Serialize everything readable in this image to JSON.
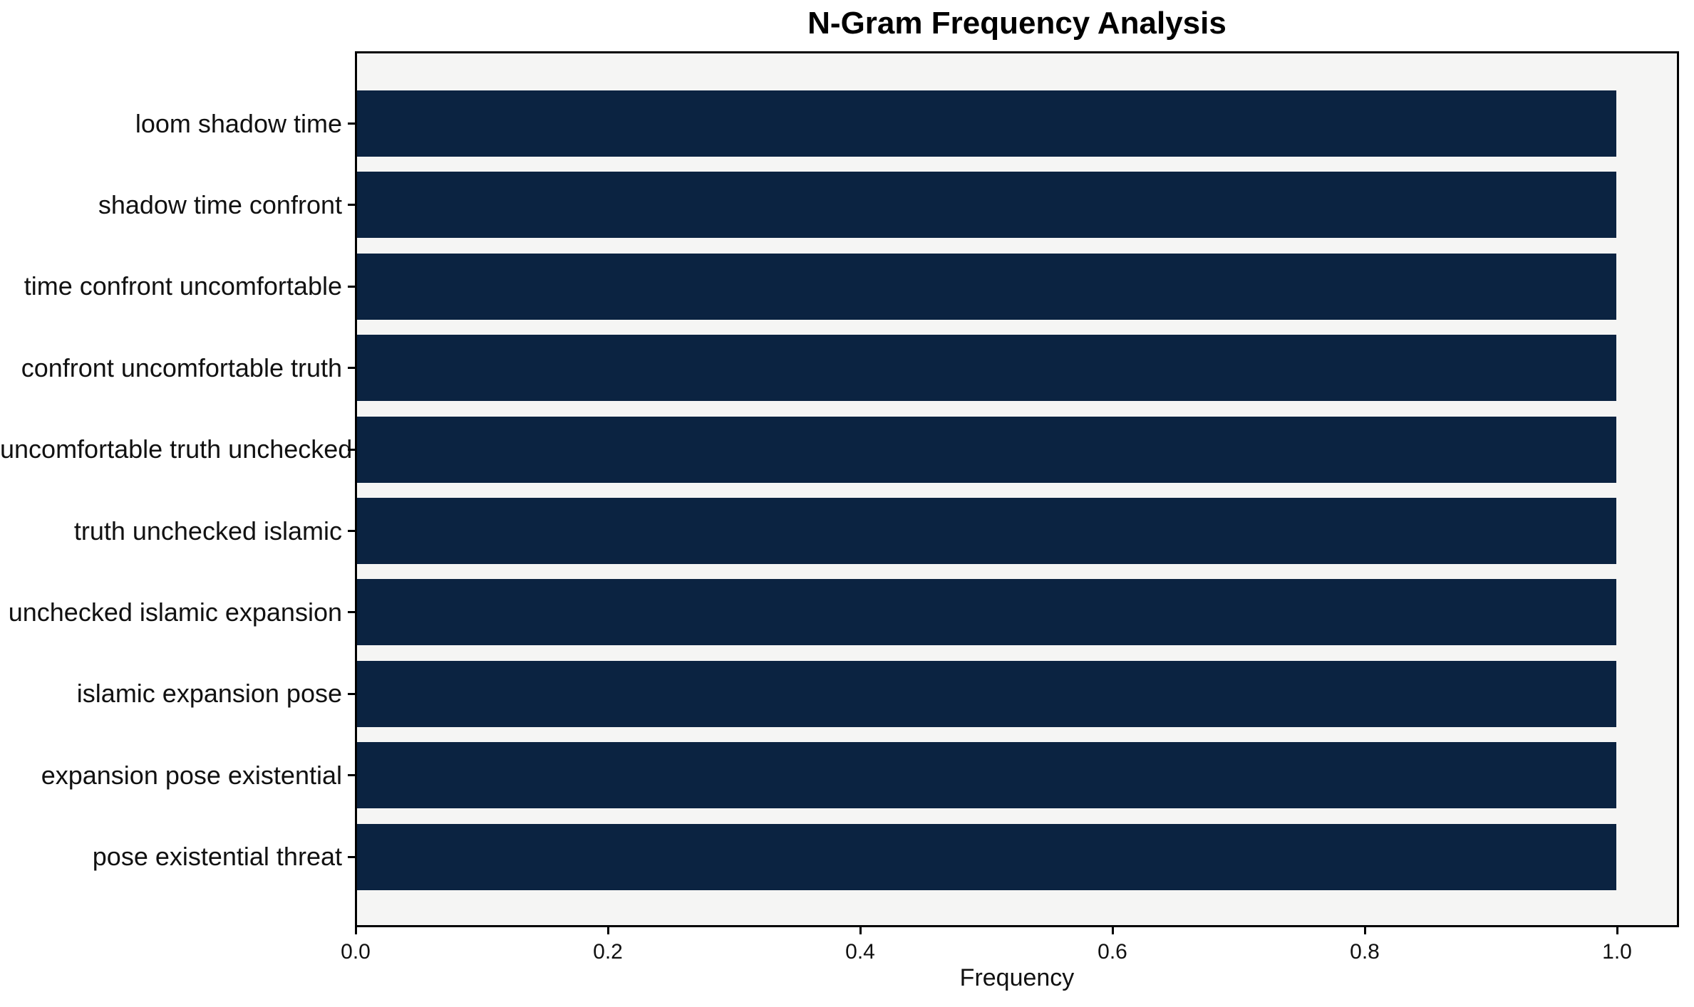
{
  "chart_data": {
    "type": "bar",
    "orientation": "horizontal",
    "title": "N-Gram Frequency Analysis",
    "xlabel": "Frequency",
    "ylabel": "",
    "categories": [
      "loom shadow time",
      "shadow time confront",
      "time confront uncomfortable",
      "confront uncomfortable truth",
      "uncomfortable truth unchecked",
      "truth unchecked islamic",
      "unchecked islamic expansion",
      "islamic expansion pose",
      "expansion pose existential",
      "pose existential threat"
    ],
    "values": [
      1.0,
      1.0,
      1.0,
      1.0,
      1.0,
      1.0,
      1.0,
      1.0,
      1.0,
      1.0
    ],
    "xlim": [
      0,
      1.05
    ],
    "x_ticks": [
      0.0,
      0.2,
      0.4,
      0.6,
      0.8,
      1.0
    ],
    "x_tick_labels": [
      "0.0",
      "0.2",
      "0.4",
      "0.6",
      "0.8",
      "1.0"
    ],
    "grid": false,
    "legend": false,
    "bar_color": "#0b2341",
    "plot_background": "#f5f5f4",
    "figure_background": "#ffffff",
    "text_color": "#111111",
    "spine_color": "#000000"
  }
}
